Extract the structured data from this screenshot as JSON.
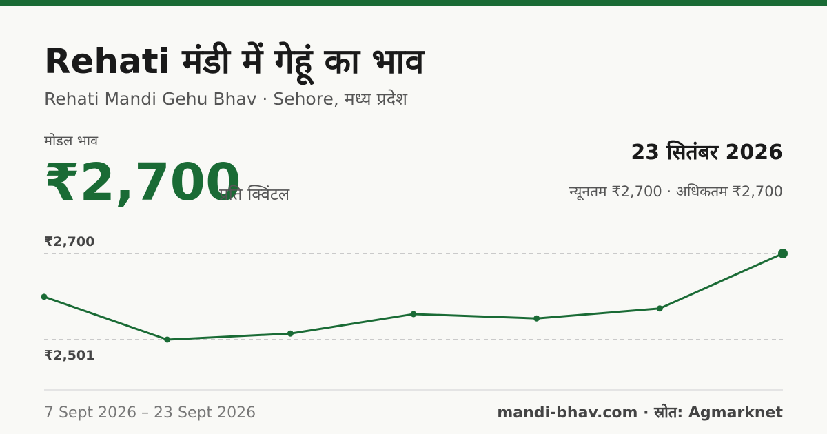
{
  "header": {
    "title": "Rehati मंडी में गेहूं का भाव",
    "subtitle": "Rehati Mandi Gehu Bhav · Sehore, मध्य प्रदेश"
  },
  "price": {
    "label": "मोडल भाव",
    "value": "₹2,700",
    "unit": "प्रति क्विंटल",
    "date": "23 सितंबर 2026",
    "range": "न्यूनतम ₹2,700 · अधिकतम ₹2,700"
  },
  "chart_data": {
    "type": "line",
    "values": [
      2600,
      2501,
      2515,
      2560,
      2550,
      2573,
      2700
    ],
    "color": "#1a6b35",
    "ylim": [
      2501,
      2700
    ],
    "yticks": [
      {
        "value": 2501,
        "label": "₹2,501"
      },
      {
        "value": 2700,
        "label": "₹2,700"
      }
    ],
    "grid": true
  },
  "footer": {
    "dates": "7 Sept 2026 – 23 Sept 2026",
    "source": "mandi-bhav.com · स्रोत: Agmarknet"
  }
}
